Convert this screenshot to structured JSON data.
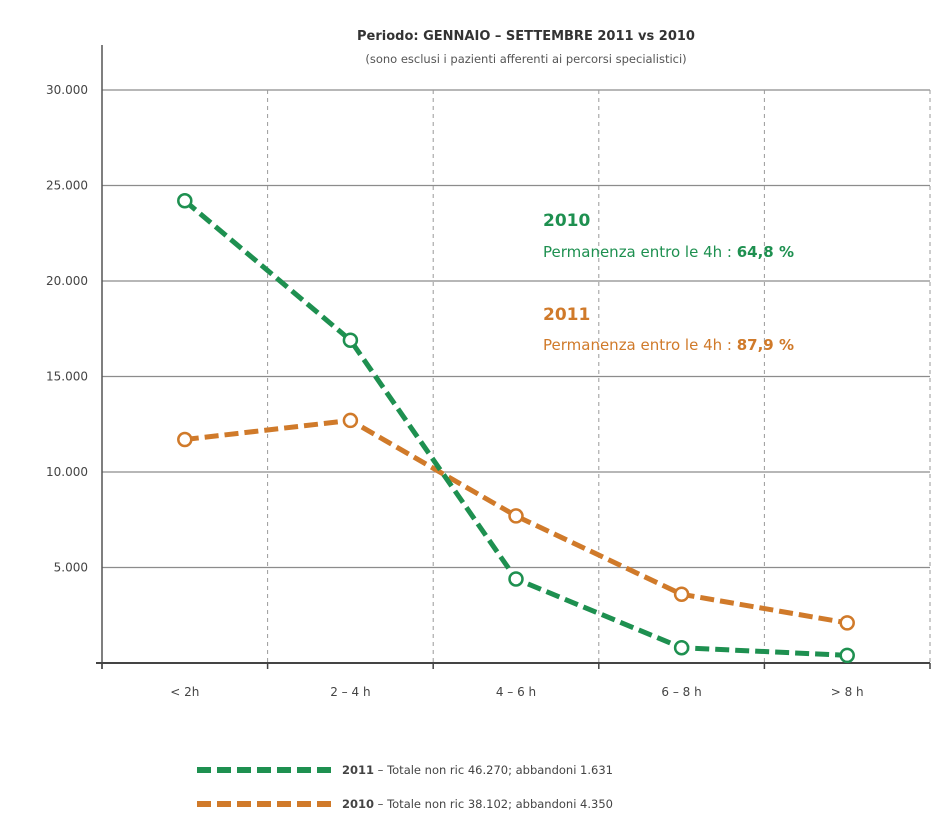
{
  "chart_data": {
    "type": "line",
    "title": "Periodo: GENNAIO – SETTEMBRE 2011 vs 2010",
    "subtitle": "(sono esclusi i pazienti afferenti ai percorsi specialistici)",
    "categories": [
      "< 2h",
      "2 – 4 h",
      "4 – 6 h",
      "6 – 8 h",
      "> 8 h"
    ],
    "y_ticks": [
      "30.000",
      "25.000",
      "20.000",
      "15.000",
      "10.000",
      "5.000"
    ],
    "ylim": [
      0,
      30000
    ],
    "grid": true,
    "series": [
      {
        "name": "2011",
        "color": "#1e9050",
        "values": [
          24200,
          16900,
          4400,
          800,
          400
        ],
        "legend_year": "2011",
        "legend_text": " – Totale non ric 46.270; abbandoni 1.631"
      },
      {
        "name": "2010",
        "color": "#d07a2a",
        "values": [
          11700,
          12700,
          7700,
          3600,
          2100
        ],
        "legend_year": "2010",
        "legend_text": " – Totale non ric 38.102; abbandoni 4.350"
      }
    ],
    "annotations": [
      {
        "year": "2010",
        "text": "Permanenza entro le 4h : ",
        "value": "64,8 %",
        "color": "#1e9050"
      },
      {
        "year": "2011",
        "text": "Permanenza entro le 4h : ",
        "value": "87,9 %",
        "color": "#d07a2a"
      }
    ]
  }
}
